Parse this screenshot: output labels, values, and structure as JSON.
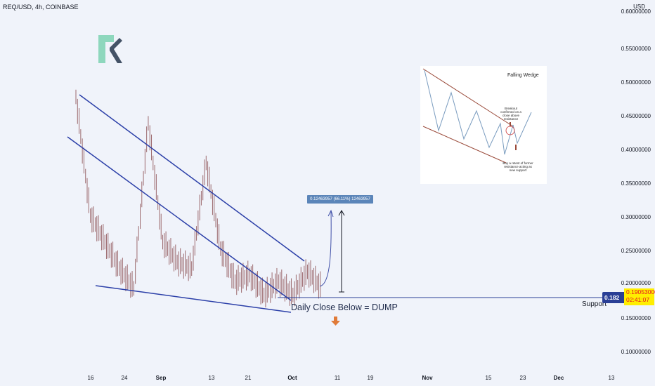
{
  "header": {
    "symbol": "REQ/USD, 4h, COINBASE",
    "currency": "USD"
  },
  "price_axis": {
    "ticks": [
      "0.60000000",
      "0.55000000",
      "0.50000000",
      "0.45000000",
      "0.40000000",
      "0.35000000",
      "0.30000000",
      "0.25000000",
      "0.20000000",
      "0.15000000",
      "0.10000000"
    ]
  },
  "time_axis": {
    "ticks": [
      "16",
      "24",
      "Sep",
      "13",
      "21",
      "Oct",
      "11",
      "19",
      "Nov",
      "15",
      "23",
      "Dec",
      "13"
    ]
  },
  "badges": {
    "last_price": "0.182",
    "current_price": "0.19053000",
    "countdown": "02:41:07"
  },
  "annotations": {
    "support": "Support",
    "dump": "Daily Close Below = DUMP",
    "measure": "0.12463957 (66.11%) 12463957"
  },
  "inset": {
    "title": "Falling Wedge",
    "note_breakout": "Breakout confirmed on a close above resistance",
    "note_retest": "Buy a retest of former resistance acting as new support"
  },
  "colors": {
    "background": "#f0f3fa",
    "trendline": "#2b3fa8",
    "candle": "#9c6a6e",
    "support_line": "#2a3f96",
    "arrow": "#e07b39"
  },
  "icons": {
    "logo": "request-network-logo",
    "arrow": "down-arrow-icon"
  },
  "chart_data": {
    "type": "candlestick",
    "title": "REQ/USD, 4h, COINBASE",
    "ylabel": "USD",
    "ylim": [
      0.075,
      0.615
    ],
    "x_ticks": [
      "16",
      "24",
      "Sep",
      "13",
      "21",
      "Oct",
      "11",
      "19",
      "Nov",
      "15",
      "23",
      "Dec",
      "13"
    ],
    "series": [
      {
        "name": "REQ/USD",
        "points": [
          {
            "x": "Aug 14",
            "y": 0.48
          },
          {
            "x": "Aug 15",
            "y": 0.3
          },
          {
            "x": "Aug 16",
            "y": 0.26
          },
          {
            "x": "Aug 18",
            "y": 0.22
          },
          {
            "x": "Aug 20",
            "y": 0.19
          },
          {
            "x": "Aug 22",
            "y": 0.44
          },
          {
            "x": "Aug 24",
            "y": 0.26
          },
          {
            "x": "Aug 28",
            "y": 0.23
          },
          {
            "x": "Sep 1",
            "y": 0.22
          },
          {
            "x": "Sep 5",
            "y": 0.38
          },
          {
            "x": "Sep 6",
            "y": 0.25
          },
          {
            "x": "Sep 10",
            "y": 0.2
          },
          {
            "x": "Sep 16",
            "y": 0.21
          },
          {
            "x": "Sep 21",
            "y": 0.18
          },
          {
            "x": "Sep 25",
            "y": 0.2
          },
          {
            "x": "Sep 30",
            "y": 0.18
          },
          {
            "x": "Oct 2",
            "y": 0.215
          },
          {
            "x": "Oct 6",
            "y": 0.19
          }
        ]
      }
    ],
    "annotations": [
      {
        "type": "trendline",
        "label": "resistance",
        "points": [
          {
            "x": "Aug 14",
            "y": 0.485
          },
          {
            "x": "Oct 3",
            "y": 0.235
          }
        ]
      },
      {
        "type": "trendline",
        "label": "wedge",
        "points": [
          {
            "x": "Aug 12",
            "y": 0.42
          },
          {
            "x": "Oct 1",
            "y": 0.18
          }
        ]
      },
      {
        "type": "trendline",
        "label": "lower",
        "points": [
          {
            "x": "Aug 18",
            "y": 0.199
          },
          {
            "x": "Oct 1",
            "y": 0.157
          }
        ]
      },
      {
        "type": "hline",
        "label": "Support",
        "y": 0.182
      },
      {
        "type": "measure",
        "label": "0.12463957 (66.11%) 12463957",
        "from": 0.19,
        "to": 0.315
      }
    ]
  }
}
